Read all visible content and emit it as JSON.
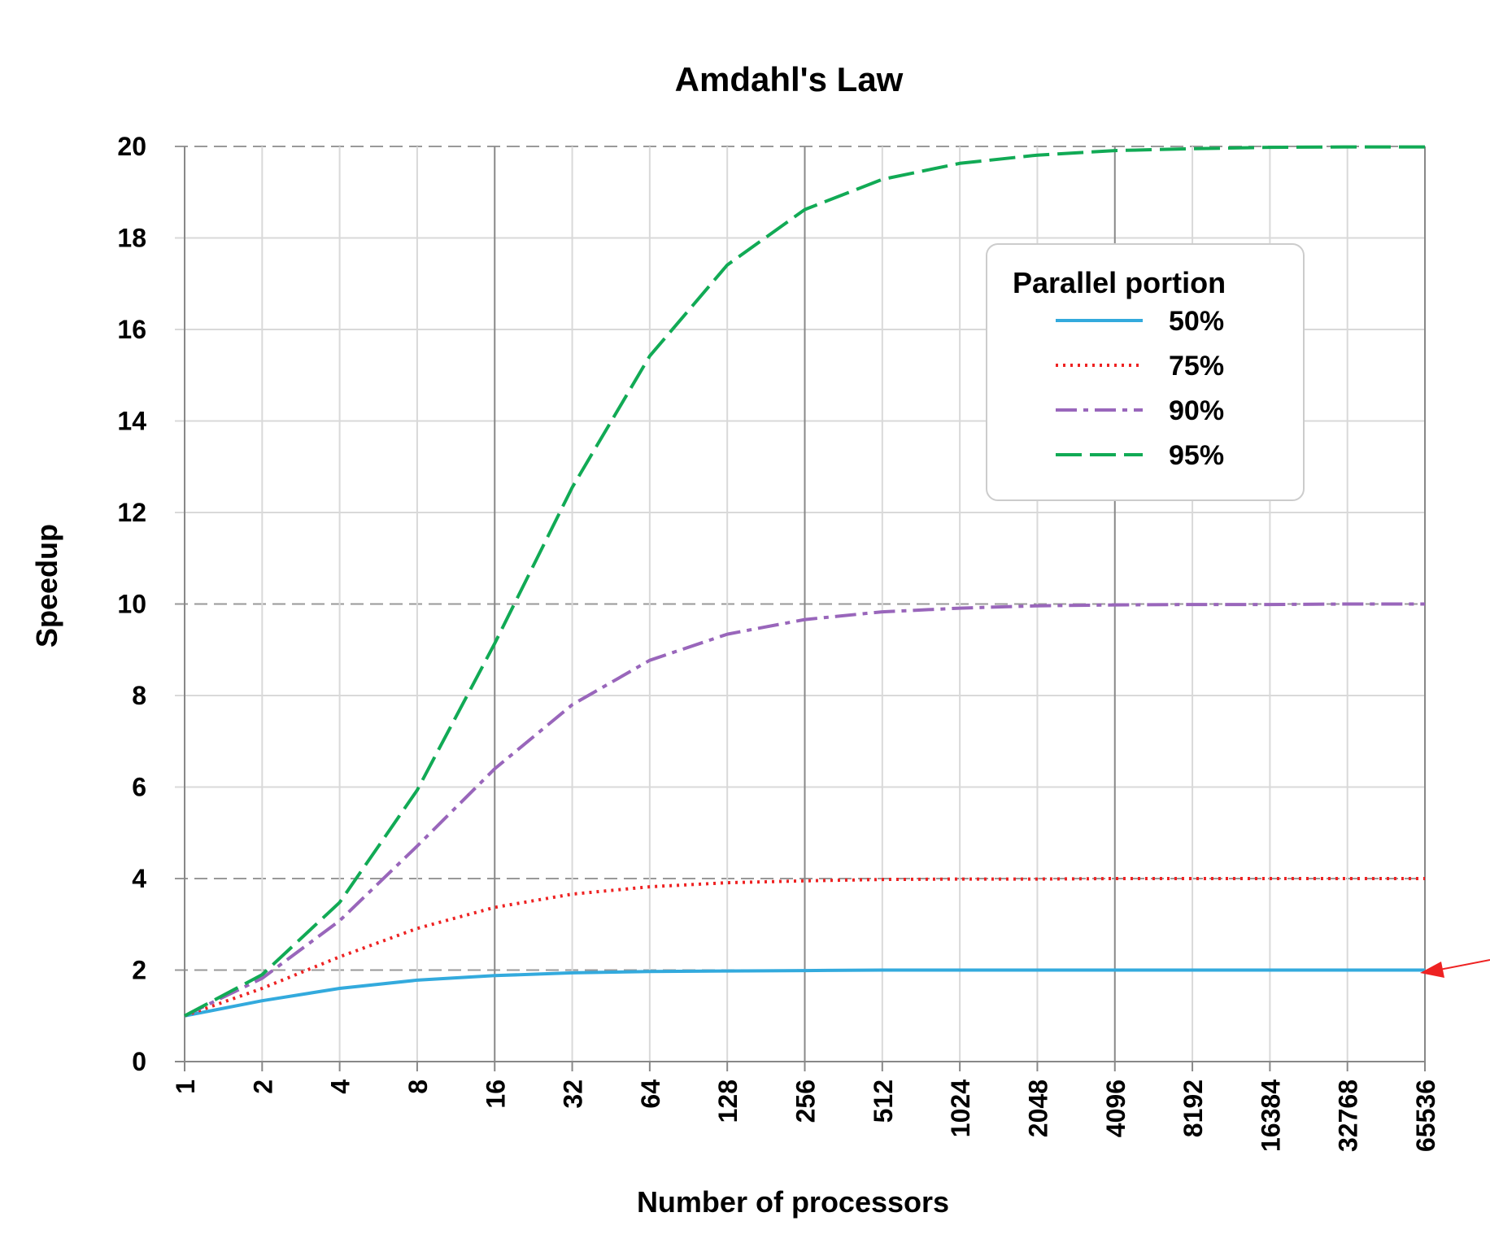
{
  "chart_data": {
    "type": "line",
    "title": "Amdahl's Law",
    "xlabel": "Number of processors",
    "ylabel": "Speedup",
    "x_scale": "log2",
    "x": [
      1,
      2,
      4,
      8,
      16,
      32,
      64,
      128,
      256,
      512,
      1024,
      2048,
      4096,
      8192,
      16384,
      32768,
      65536
    ],
    "xtick_labels": [
      "1",
      "2",
      "4",
      "8",
      "16",
      "32",
      "64",
      "128",
      "256",
      "512",
      "1024",
      "2048",
      "4096",
      "8192",
      "16384",
      "32768",
      "65536"
    ],
    "ylim": [
      0,
      20
    ],
    "yticks": [
      0,
      2,
      4,
      6,
      8,
      10,
      12,
      14,
      16,
      18,
      20
    ],
    "grid": true,
    "legend": {
      "title": "Parallel portion",
      "placement": "top-right"
    },
    "series": [
      {
        "name": "50%",
        "color": "#33aadd",
        "style": "solid",
        "values": [
          1.0,
          1.33,
          1.6,
          1.78,
          1.88,
          1.94,
          1.97,
          1.98,
          1.99,
          2.0,
          2.0,
          2.0,
          2.0,
          2.0,
          2.0,
          2.0,
          2.0
        ]
      },
      {
        "name": "75%",
        "color": "#ee2222",
        "style": "dotted",
        "values": [
          1.0,
          1.6,
          2.29,
          2.91,
          3.37,
          3.66,
          3.82,
          3.91,
          3.95,
          3.98,
          3.99,
          3.99,
          4.0,
          4.0,
          4.0,
          4.0,
          4.0
        ]
      },
      {
        "name": "90%",
        "color": "#9966bb",
        "style": "dashdot",
        "values": [
          1.0,
          1.82,
          3.08,
          4.71,
          6.4,
          7.8,
          8.77,
          9.34,
          9.66,
          9.83,
          9.91,
          9.96,
          9.98,
          9.99,
          9.99,
          10.0,
          10.0
        ]
      },
      {
        "name": "95%",
        "color": "#11aa55",
        "style": "dashed",
        "values": [
          1.0,
          1.9,
          3.48,
          5.93,
          9.14,
          12.55,
          15.42,
          17.41,
          18.62,
          19.28,
          19.63,
          19.81,
          19.91,
          19.95,
          19.98,
          19.99,
          19.99
        ]
      }
    ]
  }
}
